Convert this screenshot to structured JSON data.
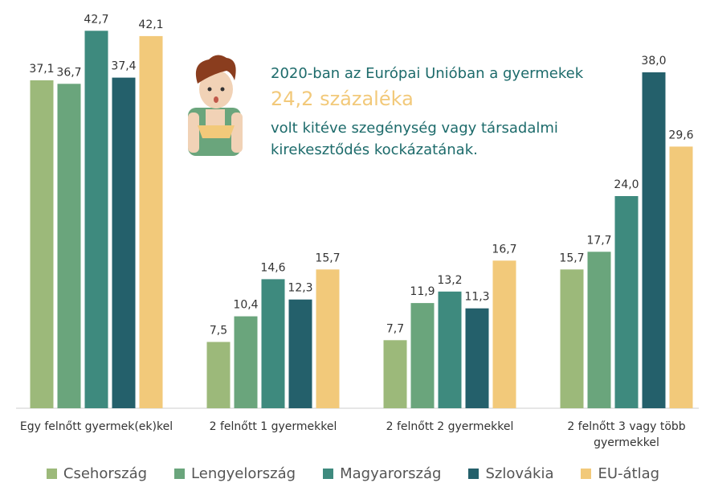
{
  "chart_data": {
    "type": "bar",
    "annotation": [
      "2020-ban az Európai Unióban a gyermekek",
      "24,2 százaléka",
      "volt kitéve szegénység vagy társadalmi",
      "kirekesztődés kockázatának."
    ],
    "categories": [
      "Egy felnőtt gyermek(ek)kel",
      "2 felnőtt 1 gyermekkel",
      "2 felnőtt 2 gyermekkel",
      "2 felnőtt 3 vagy több gyermekkel"
    ],
    "series": [
      {
        "name": "Csehország",
        "color": "#9cb97a",
        "values": [
          37.1,
          7.5,
          7.7,
          15.7
        ],
        "value_labels": [
          "37,1",
          "7,5",
          "7,7",
          "15,7"
        ]
      },
      {
        "name": "Lengyelország",
        "color": "#6aa57c",
        "values": [
          36.7,
          10.4,
          11.9,
          17.7
        ],
        "value_labels": [
          "36,7",
          "10,4",
          "11,9",
          "17,7"
        ]
      },
      {
        "name": "Magyarország",
        "color": "#3e8a7e",
        "values": [
          42.7,
          14.6,
          13.2,
          24.0
        ],
        "value_labels": [
          "42,7",
          "14,6",
          "13,2",
          "24,0"
        ]
      },
      {
        "name": "Szlovákia",
        "color": "#24606b",
        "values": [
          37.4,
          12.3,
          11.3,
          38.0
        ],
        "value_labels": [
          "37,4",
          "12,3",
          "11,3",
          "38,0"
        ]
      },
      {
        "name": "EU-átlag",
        "color": "#f2c97a",
        "values": [
          42.1,
          15.7,
          16.7,
          29.6
        ],
        "value_labels": [
          "42,1",
          "15,7",
          "16,7",
          "29,6"
        ]
      }
    ]
  }
}
